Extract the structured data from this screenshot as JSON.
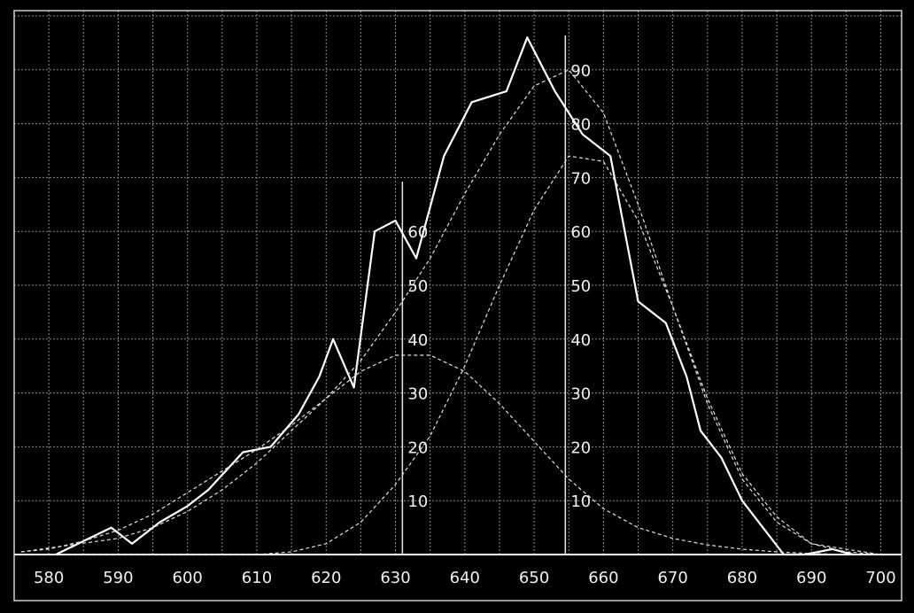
{
  "chart_data": {
    "type": "line",
    "title": "",
    "xlabel": "",
    "ylabel": "",
    "xlim": [
      575,
      703
    ],
    "ylim": [
      0,
      100
    ],
    "grid": true,
    "x_ticks": [
      580,
      590,
      600,
      610,
      620,
      630,
      640,
      650,
      660,
      670,
      680,
      690,
      700
    ],
    "y_ticks_left_marker": [
      10,
      20,
      30,
      40,
      50,
      60
    ],
    "y_ticks_right_marker": [
      10,
      20,
      30,
      40,
      50,
      60,
      70,
      80,
      90
    ],
    "marker_lines_x": [
      631,
      654.5
    ],
    "series": [
      {
        "style": "solid",
        "x": [
          581,
          589,
          592,
          596,
          600,
          603,
          608,
          612,
          616,
          619,
          621,
          624,
          627,
          630,
          633,
          637,
          641,
          646,
          649,
          653,
          657,
          661,
          665,
          669,
          672,
          674,
          677,
          680,
          683,
          686,
          689,
          693,
          696
        ],
        "y": [
          0,
          5,
          2,
          6,
          9,
          12,
          19,
          20,
          26,
          33,
          40,
          31,
          60,
          62,
          55,
          74,
          84,
          86,
          96,
          86,
          78,
          74,
          47,
          43,
          33,
          23,
          18,
          10,
          5,
          0,
          0,
          1,
          0
        ]
      },
      {
        "style": "dashed",
        "x": [
          576,
          580,
          585,
          590,
          595,
          600,
          605,
          610,
          615,
          620,
          625,
          630,
          635,
          640,
          645,
          650,
          655,
          660,
          665,
          670,
          675,
          680,
          685,
          690,
          695,
          700
        ],
        "y": [
          0.5,
          1,
          2.5,
          4.5,
          7.5,
          11.5,
          15.5,
          19.5,
          24,
          29,
          36,
          45,
          55,
          67,
          78,
          87,
          90,
          82,
          65,
          46,
          29,
          15,
          7,
          2,
          0.5,
          0
        ]
      },
      {
        "style": "dashed",
        "x": [
          576,
          600,
          605,
          610,
          615,
          620,
          625,
          630,
          635,
          640,
          645,
          650,
          655,
          660,
          665,
          670,
          675,
          680,
          685,
          690,
          700
        ],
        "y": [
          0,
          0,
          0,
          0,
          0.5,
          2,
          6,
          13,
          22,
          35,
          50,
          64,
          74,
          73,
          62,
          46,
          28,
          14,
          6,
          2,
          0
        ]
      },
      {
        "style": "dashed",
        "x": [
          576,
          590,
          595,
          600,
          605,
          610,
          615,
          620,
          625,
          630,
          635,
          640,
          645,
          650,
          655,
          660,
          665,
          670,
          675,
          680,
          685,
          690,
          695,
          700
        ],
        "y": [
          0.5,
          3,
          5,
          8,
          12,
          17,
          23,
          29,
          34,
          37,
          37,
          34,
          28,
          21,
          14,
          8.5,
          5,
          3,
          1.8,
          1,
          0.5,
          0.2,
          0,
          0
        ]
      }
    ]
  }
}
